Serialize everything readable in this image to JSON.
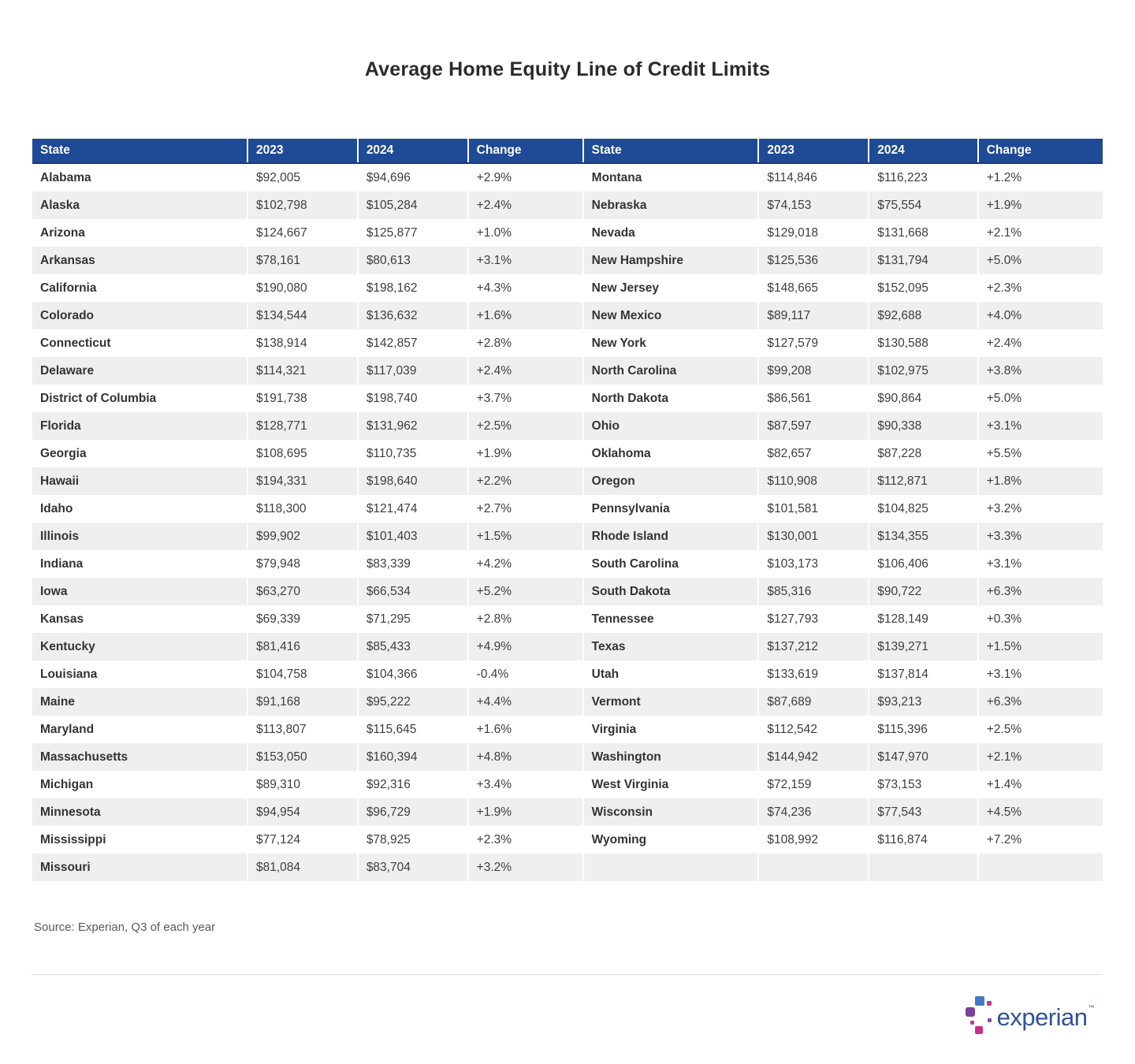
{
  "title": "Average Home Equity Line of Credit Limits",
  "source": "Source: Experian, Q3 of each year",
  "logo": {
    "wordmark": "experian",
    "trademark": "™"
  },
  "colors": {
    "header_bg": "#1f4a96",
    "header_text": "#ffffff",
    "row_stripe": "#efefef",
    "body_text": "#3d3d3d",
    "title_text": "#2b2b2b",
    "source_text": "#595959",
    "logo_text": "#31529b",
    "logo_blue": "#3e7bc4",
    "logo_purple": "#7b3f9e",
    "logo_magenta": "#c92e8c"
  },
  "chart_data": {
    "type": "table",
    "title": "Average Home Equity Line of Credit Limits",
    "headers": [
      "State",
      "2023",
      "2024",
      "Change",
      "State",
      "2023",
      "2024",
      "Change"
    ],
    "rows_left": [
      [
        "Alabama",
        "$92,005",
        "$94,696",
        "+2.9%"
      ],
      [
        "Alaska",
        "$102,798",
        "$105,284",
        "+2.4%"
      ],
      [
        "Arizona",
        "$124,667",
        "$125,877",
        "+1.0%"
      ],
      [
        "Arkansas",
        "$78,161",
        "$80,613",
        "+3.1%"
      ],
      [
        "California",
        "$190,080",
        "$198,162",
        "+4.3%"
      ],
      [
        "Colorado",
        "$134,544",
        "$136,632",
        "+1.6%"
      ],
      [
        "Connecticut",
        "$138,914",
        "$142,857",
        "+2.8%"
      ],
      [
        "Delaware",
        "$114,321",
        "$117,039",
        "+2.4%"
      ],
      [
        "District of Columbia",
        "$191,738",
        "$198,740",
        "+3.7%"
      ],
      [
        "Florida",
        "$128,771",
        "$131,962",
        "+2.5%"
      ],
      [
        "Georgia",
        "$108,695",
        "$110,735",
        "+1.9%"
      ],
      [
        "Hawaii",
        "$194,331",
        "$198,640",
        "+2.2%"
      ],
      [
        "Idaho",
        "$118,300",
        "$121,474",
        "+2.7%"
      ],
      [
        "Illinois",
        "$99,902",
        "$101,403",
        "+1.5%"
      ],
      [
        "Indiana",
        "$79,948",
        "$83,339",
        "+4.2%"
      ],
      [
        "Iowa",
        "$63,270",
        "$66,534",
        "+5.2%"
      ],
      [
        "Kansas",
        "$69,339",
        "$71,295",
        "+2.8%"
      ],
      [
        "Kentucky",
        "$81,416",
        "$85,433",
        "+4.9%"
      ],
      [
        "Louisiana",
        "$104,758",
        "$104,366",
        "-0.4%"
      ],
      [
        "Maine",
        "$91,168",
        "$95,222",
        "+4.4%"
      ],
      [
        "Maryland",
        "$113,807",
        "$115,645",
        "+1.6%"
      ],
      [
        "Massachusetts",
        "$153,050",
        "$160,394",
        "+4.8%"
      ],
      [
        "Michigan",
        "$89,310",
        "$92,316",
        "+3.4%"
      ],
      [
        "Minnesota",
        "$94,954",
        "$96,729",
        "+1.9%"
      ],
      [
        "Mississippi",
        "$77,124",
        "$78,925",
        "+2.3%"
      ],
      [
        "Missouri",
        "$81,084",
        "$83,704",
        "+3.2%"
      ]
    ],
    "rows_right": [
      [
        "Montana",
        "$114,846",
        "$116,223",
        "+1.2%"
      ],
      [
        "Nebraska",
        "$74,153",
        "$75,554",
        "+1.9%"
      ],
      [
        "Nevada",
        "$129,018",
        "$131,668",
        "+2.1%"
      ],
      [
        "New Hampshire",
        "$125,536",
        "$131,794",
        "+5.0%"
      ],
      [
        "New Jersey",
        "$148,665",
        "$152,095",
        "+2.3%"
      ],
      [
        "New Mexico",
        "$89,117",
        "$92,688",
        "+4.0%"
      ],
      [
        "New York",
        "$127,579",
        "$130,588",
        "+2.4%"
      ],
      [
        "North Carolina",
        "$99,208",
        "$102,975",
        "+3.8%"
      ],
      [
        "North Dakota",
        "$86,561",
        "$90,864",
        "+5.0%"
      ],
      [
        "Ohio",
        "$87,597",
        "$90,338",
        "+3.1%"
      ],
      [
        "Oklahoma",
        "$82,657",
        "$87,228",
        "+5.5%"
      ],
      [
        "Oregon",
        "$110,908",
        "$112,871",
        "+1.8%"
      ],
      [
        "Pennsylvania",
        "$101,581",
        "$104,825",
        "+3.2%"
      ],
      [
        "Rhode Island",
        "$130,001",
        "$134,355",
        "+3.3%"
      ],
      [
        "South Carolina",
        "$103,173",
        "$106,406",
        "+3.1%"
      ],
      [
        "South Dakota",
        "$85,316",
        "$90,722",
        "+6.3%"
      ],
      [
        "Tennessee",
        "$127,793",
        "$128,149",
        "+0.3%"
      ],
      [
        "Texas",
        "$137,212",
        "$139,271",
        "+1.5%"
      ],
      [
        "Utah",
        "$133,619",
        "$137,814",
        "+3.1%"
      ],
      [
        "Vermont",
        "$87,689",
        "$93,213",
        "+6.3%"
      ],
      [
        "Virginia",
        "$112,542",
        "$115,396",
        "+2.5%"
      ],
      [
        "Washington",
        "$144,942",
        "$147,970",
        "+2.1%"
      ],
      [
        "West Virginia",
        "$72,159",
        "$73,153",
        "+1.4%"
      ],
      [
        "Wisconsin",
        "$74,236",
        "$77,543",
        "+4.5%"
      ],
      [
        "Wyoming",
        "$108,992",
        "$116,874",
        "+7.2%"
      ]
    ],
    "source": "Source: Experian, Q3 of each year"
  }
}
